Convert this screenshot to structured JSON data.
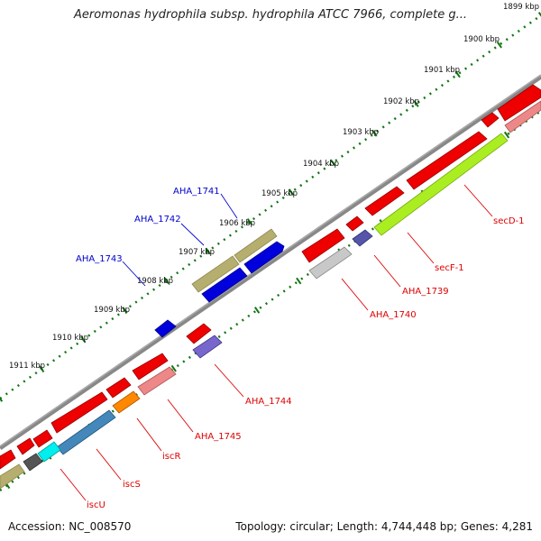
{
  "title": "Aeromonas hydrophila subsp. hydrophila ATCC 7966, complete g...",
  "accession": "Accession: NC_008570",
  "topology": "Topology: circular; Length: 4,744,448 bp; Genes: 4,281",
  "ticks": [
    {
      "label": "1899 kbp"
    },
    {
      "label": "1900 kbp"
    },
    {
      "label": "1901 kbp"
    },
    {
      "label": "1902 kbp"
    },
    {
      "label": "1903 kbp"
    },
    {
      "label": "1904 kbp"
    },
    {
      "label": "1905 kbp"
    },
    {
      "label": "1906 kbp"
    },
    {
      "label": "1907 kbp"
    },
    {
      "label": "1908 kbp"
    },
    {
      "label": "1909 kbp"
    },
    {
      "label": "1910 kbp"
    },
    {
      "label": "1911 kbp"
    }
  ],
  "gene_labels": [
    {
      "text": "AHA_1741",
      "color": "#0000cc"
    },
    {
      "text": "AHA_1742",
      "color": "#0000cc"
    },
    {
      "text": "AHA_1743",
      "color": "#0000cc"
    },
    {
      "text": "secD-1",
      "color": "#dd0000"
    },
    {
      "text": "secF-1",
      "color": "#dd0000"
    },
    {
      "text": "AHA_1739",
      "color": "#dd0000"
    },
    {
      "text": "AHA_1740",
      "color": "#dd0000"
    },
    {
      "text": "AHA_1744",
      "color": "#dd0000"
    },
    {
      "text": "AHA_1745",
      "color": "#dd0000"
    },
    {
      "text": "iscR",
      "color": "#dd0000"
    },
    {
      "text": "iscS",
      "color": "#dd0000"
    },
    {
      "text": "iscU",
      "color": "#dd0000"
    }
  ],
  "colors": {
    "backbone": "#777777",
    "tick": "#117711",
    "cds_forward": "#0000dd",
    "cds_reverse": "#ee0000"
  }
}
